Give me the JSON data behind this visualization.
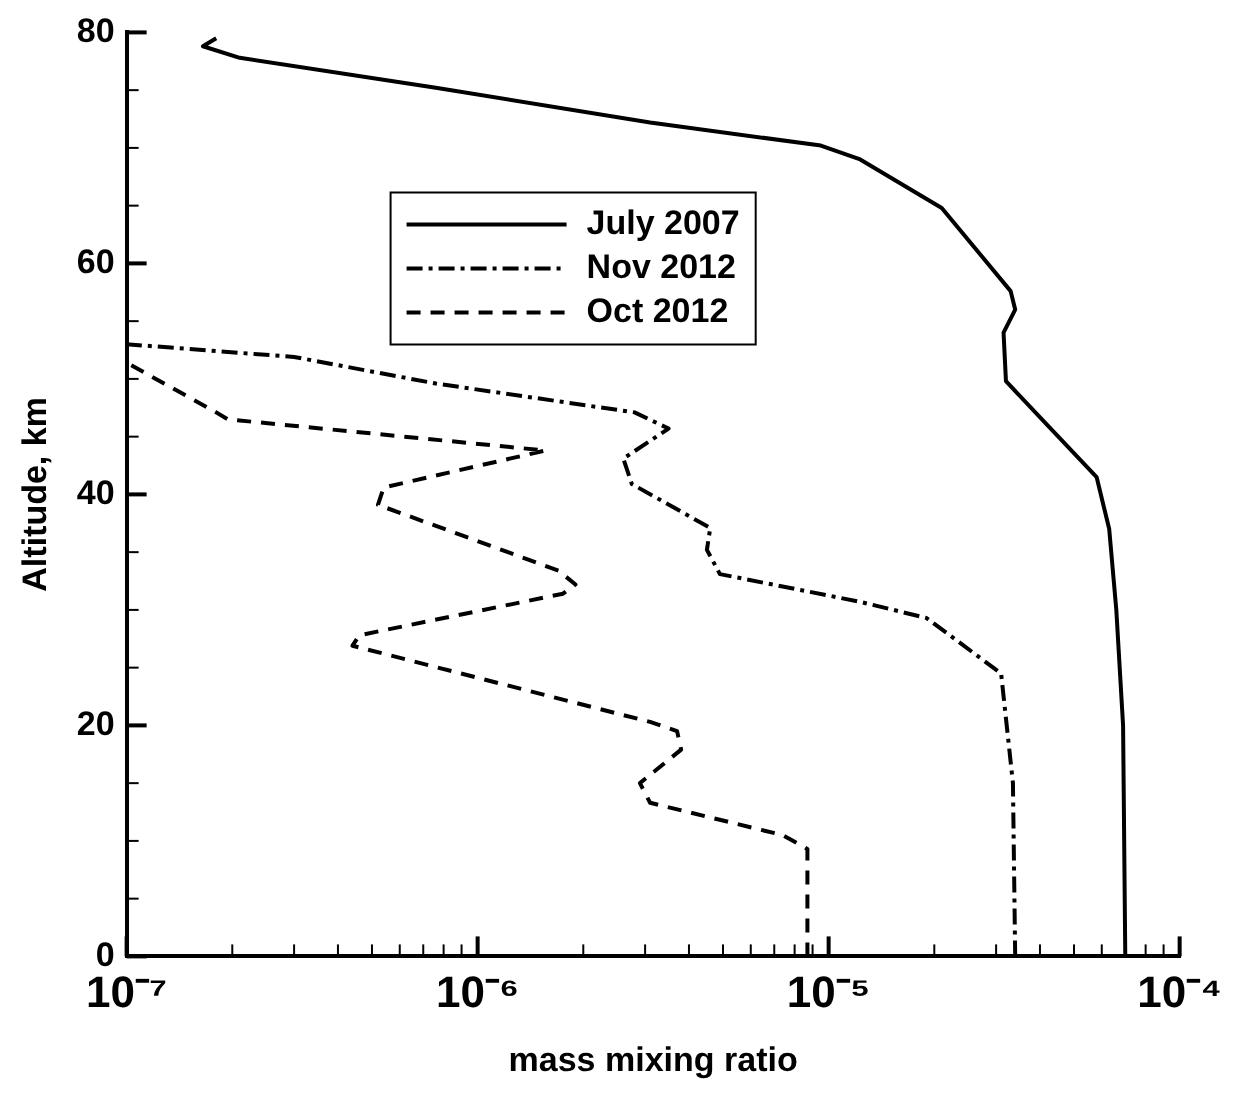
{
  "chart_data": {
    "type": "line",
    "xlabel": "mass mixing ratio",
    "ylabel": "Altitude, km",
    "log": "x",
    "grid": false,
    "legend": "top",
    "marker": "none",
    "xlim": [
      1e-07,
      0.0001
    ],
    "ylim": [
      0,
      80
    ],
    "xticks": [
      {
        "value": 1e-07,
        "label": "10⁻⁷"
      },
      {
        "value": 2e-07,
        "label": null
      },
      {
        "value": 3e-07,
        "label": null
      },
      {
        "value": 4e-07,
        "label": null
      },
      {
        "value": 5e-07,
        "label": null
      },
      {
        "value": 6e-07,
        "label": null
      },
      {
        "value": 7e-07,
        "label": null
      },
      {
        "value": 8e-07,
        "label": null
      },
      {
        "value": 9e-07,
        "label": null
      },
      {
        "value": 1e-06,
        "label": "10⁻⁶"
      },
      {
        "value": 2e-06,
        "label": null
      },
      {
        "value": 3e-06,
        "label": null
      },
      {
        "value": 4e-06,
        "label": null
      },
      {
        "value": 5e-06,
        "label": null
      },
      {
        "value": 6e-06,
        "label": null
      },
      {
        "value": 7e-06,
        "label": null
      },
      {
        "value": 8e-06,
        "label": null
      },
      {
        "value": 9e-06,
        "label": null
      },
      {
        "value": 1e-05,
        "label": "10⁻⁵"
      },
      {
        "value": 2e-05,
        "label": null
      },
      {
        "value": 3e-05,
        "label": null
      },
      {
        "value": 4e-05,
        "label": null
      },
      {
        "value": 5e-05,
        "label": null
      },
      {
        "value": 6e-05,
        "label": null
      },
      {
        "value": 7e-05,
        "label": null
      },
      {
        "value": 8e-05,
        "label": null
      },
      {
        "value": 9e-05,
        "label": null
      },
      {
        "value": 0.0001,
        "label": "10⁻⁴"
      }
    ],
    "yticks": [
      0,
      {
        "value": 5,
        "label": null
      },
      {
        "value": 10,
        "label": null
      },
      {
        "value": 15,
        "label": null
      },
      20,
      {
        "value": 25,
        "label": null
      },
      {
        "value": 30,
        "label": null
      },
      {
        "value": 35,
        "label": null
      },
      40,
      {
        "value": 45,
        "label": null
      },
      {
        "value": 50,
        "label": null
      },
      {
        "value": 55,
        "label": null
      },
      60,
      {
        "value": 65,
        "label": null
      },
      {
        "value": 70,
        "label": null
      },
      {
        "value": 75,
        "label": null
      },
      80
    ],
    "series": [
      {
        "name": "July 2007",
        "color": "#000000",
        "line_style": "solid",
        "x": [
          7e-05,
          6.9e-05,
          6.6e-05,
          6.3e-05,
          5.8e-05,
          4.2e-05,
          3.2e-05,
          3.15e-05,
          3.4e-05,
          3.3e-05,
          2.1e-05,
          1.23e-05,
          9.5e-06,
          3.1e-06,
          7.6e-07,
          2.1e-07,
          1.65e-07,
          1.8e-07
        ],
        "values": [
          0,
          20,
          30,
          37,
          41.5,
          46,
          49.8,
          54,
          56,
          57.6,
          64.8,
          69,
          70.2,
          72.2,
          75.2,
          77.8,
          78.8,
          79.5
        ]
      },
      {
        "name": "Nov 2012",
        "color": "#000000",
        "line_style": "dashdot",
        "x": [
          3.4e-05,
          3.35e-05,
          3.1e-05,
          1.9e-05,
          1.23e-05,
          4.9e-06,
          4.5e-06,
          4.6e-06,
          2.75e-06,
          2.6e-06,
          3.5e-06,
          2.8e-06,
          7.6e-07,
          3e-07,
          1e-07
        ],
        "values": [
          0,
          15,
          24.5,
          29.3,
          30.7,
          33.1,
          35.2,
          37.1,
          40.9,
          43.1,
          45.7,
          47.1,
          49.6,
          51.9,
          53
        ]
      },
      {
        "name": "Oct 2012",
        "color": "#000000",
        "line_style": "dashed",
        "x": [
          8.7e-06,
          8.7e-06,
          7.4e-06,
          3.1e-06,
          2.9e-06,
          3.8e-06,
          3.7e-06,
          3.1e-06,
          4.4e-07,
          4.6e-07,
          1.75e-06,
          1.9e-06,
          1.7e-06,
          5.2e-07,
          5.4e-07,
          1.56e-06,
          1.94e-07,
          1.8e-07,
          1e-07
        ],
        "values": [
          0,
          9.3,
          10.5,
          13.3,
          15,
          17.9,
          19.5,
          20.3,
          26.9,
          27.8,
          31.4,
          32.2,
          33.4,
          39.1,
          40.6,
          43.8,
          46.5,
          47.1,
          51.4
        ]
      }
    ]
  }
}
